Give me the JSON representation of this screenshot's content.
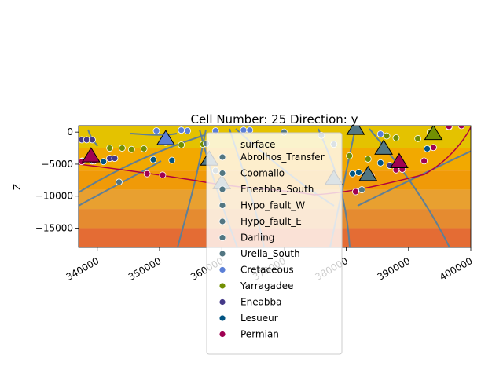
{
  "chart_data": {
    "type": "scatter",
    "title": "Cell Number: 25 Direction: y",
    "xlabel": "",
    "ylabel": "Z",
    "xlim": [
      337000,
      400000
    ],
    "ylim": [
      -18000,
      1000
    ],
    "x_ticks": [
      340000,
      350000,
      360000,
      370000,
      380000,
      390000,
      400000
    ],
    "x_tick_labels": [
      "340000",
      "350000",
      "360000",
      "370000",
      "380000",
      "390000",
      "400000"
    ],
    "y_ticks": [
      0,
      -5000,
      -10000,
      -15000
    ],
    "y_tick_labels": [
      "0",
      "−5000",
      "−10000",
      "−15000"
    ],
    "x_tick_rotation": 30,
    "legend": {
      "placement": "upper-center",
      "title": "surface",
      "entries": [
        {
          "label": "Abrolhos_Transfer",
          "color": "#527682"
        },
        {
          "label": "Coomallo",
          "color": "#527682"
        },
        {
          "label": "Eneabba_South",
          "color": "#527682"
        },
        {
          "label": "Hypo_fault_W",
          "color": "#527682"
        },
        {
          "label": "Hypo_fault_E",
          "color": "#527682"
        },
        {
          "label": "Darling",
          "color": "#527682"
        },
        {
          "label": "Urella_South",
          "color": "#527682"
        },
        {
          "label": "Cretaceous",
          "color": "#5b7fd6"
        },
        {
          "label": "Yarragadee",
          "color": "#728f02"
        },
        {
          "label": "Eneabba",
          "color": "#443988"
        },
        {
          "label": "Lesueur",
          "color": "#015482"
        },
        {
          "label": "Permian",
          "color": "#9f0052"
        }
      ]
    },
    "background_bands": [
      {
        "color": "#e4c200",
        "from": 1000,
        "to": -2500
      },
      {
        "color": "#f2a900",
        "from": -2500,
        "to": -6000
      },
      {
        "color": "#f09a08",
        "from": -6000,
        "to": -9000
      },
      {
        "color": "#e8a030",
        "from": -9000,
        "to": -12000
      },
      {
        "color": "#e58b30",
        "from": -12000,
        "to": -15000
      },
      {
        "color": "#e46c34",
        "from": -15000,
        "to": -18000
      }
    ],
    "series": [
      {
        "name": "Cretaceous",
        "color": "#5b7fd6",
        "points": [
          [
            349500,
            200
          ],
          [
            353500,
            300
          ],
          [
            354500,
            200
          ],
          [
            359000,
            200
          ],
          [
            363500,
            300
          ],
          [
            364500,
            300
          ],
          [
            385500,
            -300
          ],
          [
            396500,
            800
          ]
        ]
      },
      {
        "name": "Yarragadee",
        "color": "#728f02",
        "points": [
          [
            342000,
            -2500
          ],
          [
            344000,
            -2500
          ],
          [
            345500,
            -2700
          ],
          [
            347500,
            -2600
          ],
          [
            351000,
            -1600
          ],
          [
            353500,
            -2000
          ],
          [
            357000,
            -1900
          ],
          [
            380500,
            -3700
          ],
          [
            383500,
            -4200
          ],
          [
            386500,
            -600
          ],
          [
            388000,
            -900
          ],
          [
            391500,
            -1000
          ],
          [
            393500,
            0
          ]
        ]
      },
      {
        "name": "Eneabba",
        "color": "#443988",
        "points": [
          [
            337500,
            -1200
          ],
          [
            338300,
            -1200
          ],
          [
            339200,
            -1200
          ],
          [
            342000,
            -4100
          ],
          [
            342800,
            -4100
          ],
          [
            387000,
            -5200
          ]
        ]
      },
      {
        "name": "Lesueur",
        "color": "#015482",
        "points": [
          [
            337600,
            -4500
          ],
          [
            339200,
            -4500
          ],
          [
            341000,
            -4600
          ],
          [
            349000,
            -4300
          ],
          [
            352000,
            -4400
          ],
          [
            381000,
            -6500
          ],
          [
            382000,
            -6300
          ],
          [
            383000,
            -6700
          ],
          [
            385500,
            -4800
          ],
          [
            393000,
            -2600
          ]
        ]
      },
      {
        "name": "Permian",
        "color": "#9f0052",
        "points": [
          [
            337500,
            -4600
          ],
          [
            339500,
            -4500
          ],
          [
            348000,
            -6500
          ],
          [
            350500,
            -6700
          ],
          [
            384000,
            -6800
          ],
          [
            381500,
            -9300
          ],
          [
            388000,
            -5900
          ],
          [
            389000,
            -5800
          ],
          [
            392500,
            -4500
          ],
          [
            394000,
            -2400
          ],
          [
            396500,
            900
          ],
          [
            398500,
            1000
          ]
        ]
      },
      {
        "name": "Abrolhos_Transfer",
        "color": "#527682",
        "points": [
          [
            343500,
            -7800
          ],
          [
            357500,
            -1800
          ],
          [
            359000,
            -6000
          ],
          [
            370000,
            0
          ],
          [
            376000,
            -500
          ],
          [
            378000,
            -1900
          ],
          [
            382500,
            -9000
          ]
        ]
      }
    ],
    "orientations": [
      {
        "x": 339000,
        "y": -3800,
        "color": "#9f0052"
      },
      {
        "x": 351000,
        "y": -1100,
        "color": "#5b7fd6"
      },
      {
        "x": 358000,
        "y": -4300,
        "color": "#527682"
      },
      {
        "x": 360000,
        "y": -8000,
        "color": "#527682"
      },
      {
        "x": 378000,
        "y": -7300,
        "color": "#527682"
      },
      {
        "x": 383500,
        "y": -6700,
        "color": "#527682"
      },
      {
        "x": 386000,
        "y": -2600,
        "color": "#527682"
      },
      {
        "x": 388500,
        "y": -4700,
        "color": "#9f0052"
      },
      {
        "x": 381500,
        "y": 500,
        "color": "#527682"
      },
      {
        "x": 394000,
        "y": -300,
        "color": "#728f02"
      }
    ]
  }
}
